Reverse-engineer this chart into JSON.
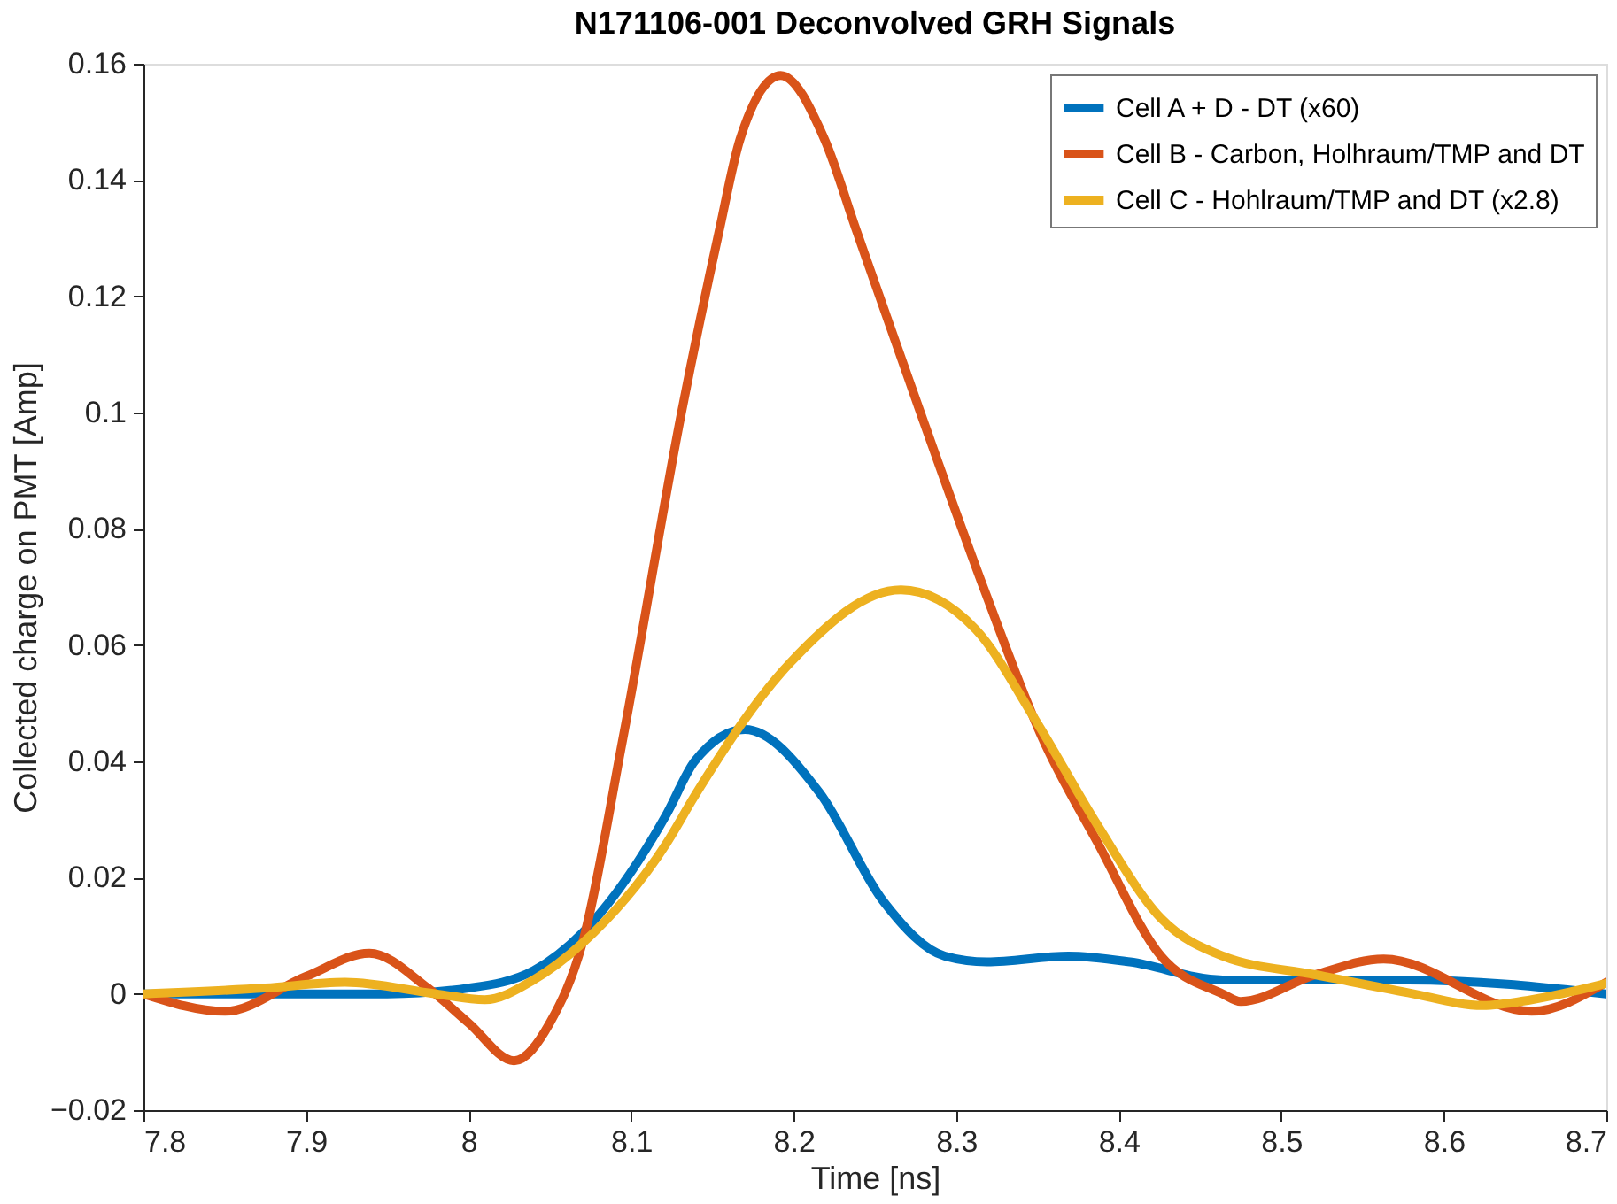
{
  "chart_data": {
    "type": "line",
    "title": "N171106-001 Deconvolved GRH Signals",
    "xlabel": "Time [ns]",
    "ylabel": "Collected charge on PMT [Amp]",
    "xlim": [
      7.8,
      8.7
    ],
    "xticks": [
      7.8,
      7.9,
      8,
      8.1,
      8.2,
      8.3,
      8.4,
      8.5,
      8.6,
      8.7
    ],
    "ylim": [
      -0.02,
      0.16
    ],
    "yticks": [
      -0.02,
      0,
      0.02,
      0.04,
      0.06,
      0.08,
      0.1,
      0.12,
      0.14,
      0.16
    ],
    "grid": false,
    "legend": "top right",
    "marker": "none",
    "line_style": "solid",
    "series": [
      {
        "name": "Cell A + D - DT (x60)",
        "color": "#0072bd",
        "x": [
          7.8,
          7.9,
          7.95,
          8.0,
          8.04,
          8.07,
          8.122,
          8.139,
          8.17,
          8.216,
          8.255,
          8.293,
          8.319,
          8.369,
          8.407,
          8.464,
          8.578,
          8.7
        ],
        "values": [
          0.0,
          0.0,
          0.0,
          0.001,
          0.004,
          0.0105,
          0.031,
          0.04,
          0.0455,
          0.0346,
          0.016,
          0.0065,
          0.0055,
          0.0065,
          0.0055,
          0.0024,
          0.0024,
          0.0
        ]
      },
      {
        "name": "Cell B - Carbon, Holhraum/TMP and DT",
        "color": "#d95319",
        "x": [
          7.8,
          7.85,
          7.9,
          7.939,
          7.975,
          8.0,
          8.028,
          8.05,
          8.07,
          8.095,
          8.131,
          8.154,
          8.167,
          8.192,
          8.219,
          8.239,
          8.278,
          8.318,
          8.353,
          8.387,
          8.426,
          8.464,
          8.475,
          8.521,
          8.563,
          8.654,
          8.7
        ],
        "values": [
          0.0,
          -0.003,
          0.003,
          0.007,
          0.001,
          -0.005,
          -0.0115,
          -0.005,
          0.0087,
          0.044,
          0.1,
          0.131,
          0.147,
          0.158,
          0.147,
          0.131,
          0.1,
          0.069,
          0.044,
          0.026,
          0.0065,
          0.0,
          -0.0013,
          0.0033,
          0.006,
          -0.003,
          0.002
        ]
      },
      {
        "name": "Cell C - Hohlraum/TMP and DT (x2.8)",
        "color": "#edb120",
        "x": [
          7.8,
          7.875,
          7.924,
          7.98,
          8.01,
          8.04,
          8.07,
          8.122,
          8.139,
          8.198,
          8.266,
          8.312,
          8.349,
          8.387,
          8.426,
          8.464,
          8.521,
          8.578,
          8.624,
          8.654,
          8.7
        ],
        "values": [
          0.0,
          0.001,
          0.002,
          0.0,
          -0.001,
          0.0024,
          0.0087,
          0.026,
          0.034,
          0.057,
          0.0695,
          0.0627,
          0.047,
          0.029,
          0.013,
          0.0065,
          0.0033,
          0.0002,
          -0.002,
          -0.001,
          0.0018
        ]
      }
    ]
  }
}
